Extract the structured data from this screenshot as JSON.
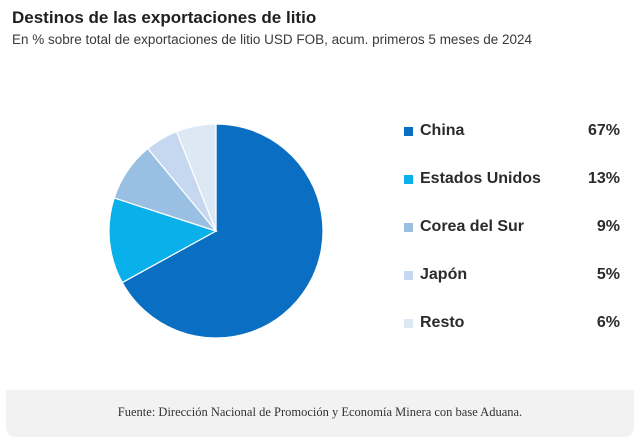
{
  "title": "Destinos de las exportaciones de litio",
  "subtitle": "En % sobre total de exportaciones de litio USD FOB, acum. primeros 5 meses de 2024",
  "source": "Fuente: Dirección Nacional de Promoción y Economía Minera con base Aduana.",
  "chart_data": {
    "type": "pie",
    "title": "Destinos de las exportaciones de litio",
    "subtitle": "En % sobre total de exportaciones de litio USD FOB, acum. primeros 5 meses de 2024",
    "legend_position": "right",
    "categories": [
      "China",
      "Estados Unidos",
      "Corea del Sur",
      "Japón",
      "Resto"
    ],
    "values": [
      67,
      13,
      9,
      5,
      6
    ],
    "value_labels": [
      "67%",
      "13%",
      "9%",
      "5%",
      "6%"
    ],
    "colors": [
      "#0a6fc2",
      "#0ab0ea",
      "#99bfe3",
      "#c5d8ef",
      "#dde8f5"
    ]
  }
}
